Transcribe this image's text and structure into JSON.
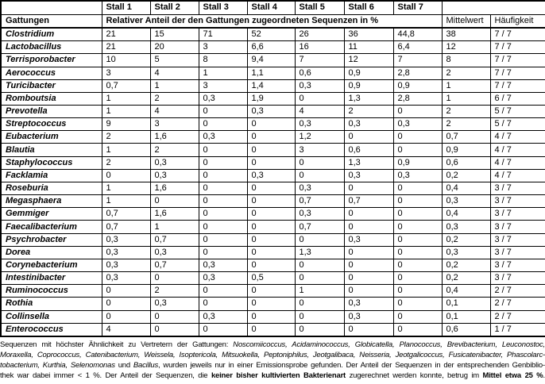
{
  "table": {
    "row_header_label": "Gattungen",
    "stall_headers": [
      "Stall 1",
      "Stall 2",
      "Stall 3",
      "Stall 4",
      "Stall 5",
      "Stall 6",
      "Stall 7"
    ],
    "span_header": "Relativer Anteil der den Gattungen zugeordneten Sequenzen in %",
    "mittelwert_label": "Mittelwert",
    "haeufigkeit_label": "Häufigkeit",
    "rows": [
      {
        "genus": "Clostridium",
        "values": [
          "21",
          "15",
          "71",
          "52",
          "26",
          "36",
          "44,8"
        ],
        "mittelwert": "38",
        "haeufigkeit": "7 / 7"
      },
      {
        "genus": "Lactobacillus",
        "values": [
          "21",
          "20",
          "3",
          "6,6",
          "16",
          "11",
          "6,4"
        ],
        "mittelwert": "12",
        "haeufigkeit": "7 / 7"
      },
      {
        "genus": "Terrisporobacter",
        "values": [
          "10",
          "5",
          "8",
          "9,4",
          "7",
          "12",
          "7"
        ],
        "mittelwert": "8",
        "haeufigkeit": "7 / 7"
      },
      {
        "genus": "Aerococcus",
        "values": [
          "3",
          "4",
          "1",
          "1,1",
          "0,6",
          "0,9",
          "2,8"
        ],
        "mittelwert": "2",
        "haeufigkeit": "7 / 7"
      },
      {
        "genus": "Turicibacter",
        "values": [
          "0,7",
          "1",
          "3",
          "1,4",
          "0,3",
          "0,9",
          "0,9"
        ],
        "mittelwert": "1",
        "haeufigkeit": "7 / 7"
      },
      {
        "genus": "Romboutsia",
        "values": [
          "1",
          "2",
          "0,3",
          "1,9",
          "0",
          "1,3",
          "2,8"
        ],
        "mittelwert": "1",
        "haeufigkeit": "6 / 7"
      },
      {
        "genus": "Prevotella",
        "values": [
          "1",
          "4",
          "0",
          "0,3",
          "4",
          "2",
          "0"
        ],
        "mittelwert": "2",
        "haeufigkeit": "5 / 7"
      },
      {
        "genus": "Streptococcus",
        "values": [
          "9",
          "3",
          "0",
          "0",
          "0,3",
          "0,3",
          "0,3"
        ],
        "mittelwert": "2",
        "haeufigkeit": "5 / 7"
      },
      {
        "genus": "Eubacterium",
        "values": [
          "2",
          "1,6",
          "0,3",
          "0",
          "1,2",
          "0",
          "0"
        ],
        "mittelwert": "0,7",
        "haeufigkeit": "4 / 7"
      },
      {
        "genus": "Blautia",
        "values": [
          "1",
          "2",
          "0",
          "0",
          "3",
          "0,6",
          "0"
        ],
        "mittelwert": "0,9",
        "haeufigkeit": "4 / 7"
      },
      {
        "genus": "Staphylococcus",
        "values": [
          "2",
          "0,3",
          "0",
          "0",
          "0",
          "1,3",
          "0,9"
        ],
        "mittelwert": "0,6",
        "haeufigkeit": "4 / 7"
      },
      {
        "genus": "Facklamia",
        "values": [
          "0",
          "0,3",
          "0",
          "0,3",
          "0",
          "0,3",
          "0,3"
        ],
        "mittelwert": "0,2",
        "haeufigkeit": "4 / 7"
      },
      {
        "genus": "Roseburia",
        "values": [
          "1",
          "1,6",
          "0",
          "0",
          "0,3",
          "0",
          "0"
        ],
        "mittelwert": "0,4",
        "haeufigkeit": "3 / 7"
      },
      {
        "genus": "Megasphaera",
        "values": [
          "1",
          "0",
          "0",
          "0",
          "0,7",
          "0,7",
          "0"
        ],
        "mittelwert": "0,3",
        "haeufigkeit": "3 / 7"
      },
      {
        "genus": "Gemmiger",
        "values": [
          "0,7",
          "1,6",
          "0",
          "0",
          "0,3",
          "0",
          "0"
        ],
        "mittelwert": "0,4",
        "haeufigkeit": "3 / 7"
      },
      {
        "genus": "Faecalibacterium",
        "values": [
          "0,7",
          "1",
          "0",
          "0",
          "0,7",
          "0",
          "0"
        ],
        "mittelwert": "0,3",
        "haeufigkeit": "3 / 7"
      },
      {
        "genus": "Psychrobacter",
        "values": [
          "0,3",
          "0,7",
          "0",
          "0",
          "0",
          "0,3",
          "0"
        ],
        "mittelwert": "0,2",
        "haeufigkeit": "3 / 7"
      },
      {
        "genus": "Dorea",
        "values": [
          "0,3",
          "0,3",
          "0",
          "0",
          "1,3",
          "0",
          "0"
        ],
        "mittelwert": "0,3",
        "haeufigkeit": "3 / 7"
      },
      {
        "genus": "Corynebacterium",
        "values": [
          "0,3",
          "0,7",
          "0,3",
          "0",
          "0",
          "0",
          "0"
        ],
        "mittelwert": "0,2",
        "haeufigkeit": "3 / 7"
      },
      {
        "genus": "Intestinibacter",
        "values": [
          "0,3",
          "0",
          "0,3",
          "0,5",
          "0",
          "0",
          "0"
        ],
        "mittelwert": "0,2",
        "haeufigkeit": "3 / 7"
      },
      {
        "genus": "Ruminococcus",
        "values": [
          "0",
          "2",
          "0",
          "0",
          "1",
          "0",
          "0"
        ],
        "mittelwert": "0,4",
        "haeufigkeit": "2 / 7"
      },
      {
        "genus": "Rothia",
        "values": [
          "0",
          "0,3",
          "0",
          "0",
          "0",
          "0,3",
          "0"
        ],
        "mittelwert": "0,1",
        "haeufigkeit": "2 / 7"
      },
      {
        "genus": "Collinsella",
        "values": [
          "0",
          "0",
          "0,3",
          "0",
          "0",
          "0,3",
          "0"
        ],
        "mittelwert": "0,1",
        "haeufigkeit": "2 / 7"
      },
      {
        "genus": "Enterococcus",
        "values": [
          "4",
          "0",
          "0",
          "0",
          "0",
          "0",
          "0"
        ],
        "mittelwert": "0,6",
        "haeufigkeit": "1 / 7"
      }
    ]
  },
  "footnote": {
    "lines": [
      [
        {
          "t": "Sequenzen mit höchster Ähnlichkeit zu Vertretern der Gattungen: "
        },
        {
          "t": "Noscomiicoccus, Acidaminococcus, Globicatella, Planococcus, Brevibacterium, Leuconostoc,",
          "i": true
        }
      ],
      [
        {
          "t": "Moraxella, Coprococcus, Catenibacterium, Weissela, Isoptericola, Mitsuokella, Peptoniphilus, Jeotgalibaca, Neisseria, Jeotgalicoccus, Fusicatenibacter, Phascolarc-",
          "i": true
        }
      ],
      [
        {
          "t": "tobacterium, Kurthia, Selenomonas",
          "i": true
        },
        {
          "t": " und "
        },
        {
          "t": "Bacillus",
          "i": true
        },
        {
          "t": ", wurden jeweils nur in einer Emissionsprobe gefunden. Der Anteil der Sequenzen in der entsprechenden Genbiblio-"
        }
      ],
      [
        {
          "t": "thek war dabei immer < 1 %.  Der Anteil der Sequenzen, die "
        },
        {
          "t": "keiner bisher kultivierten Bakterienart",
          "b": true
        },
        {
          "t": " zugerechnet werden konnte, betrug im "
        },
        {
          "t": "Mittel etwa 25 %",
          "b": true
        },
        {
          "t": "."
        }
      ]
    ]
  }
}
